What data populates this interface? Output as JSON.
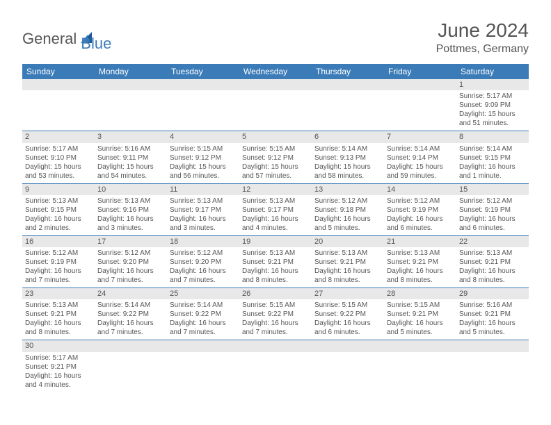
{
  "brand": {
    "text_main": "General",
    "text_accent": "Blue",
    "accent_color": "#3b7bb8"
  },
  "title": "June 2024",
  "location": "Pottmes, Germany",
  "colors": {
    "header_bg": "#3b7bb8",
    "header_text": "#ffffff",
    "daynum_bg": "#e8e8e8",
    "text": "#555555",
    "border": "#3b7bb8",
    "background": "#ffffff"
  },
  "typography": {
    "title_fontsize": 28,
    "location_fontsize": 16,
    "weekday_fontsize": 12,
    "daynum_fontsize": 11,
    "cell_fontsize": 10
  },
  "weekdays": [
    "Sunday",
    "Monday",
    "Tuesday",
    "Wednesday",
    "Thursday",
    "Friday",
    "Saturday"
  ],
  "weeks": [
    [
      null,
      null,
      null,
      null,
      null,
      null,
      {
        "n": "1",
        "sunrise": "Sunrise: 5:17 AM",
        "sunset": "Sunset: 9:09 PM",
        "daylight": "Daylight: 15 hours and 51 minutes."
      }
    ],
    [
      {
        "n": "2",
        "sunrise": "Sunrise: 5:17 AM",
        "sunset": "Sunset: 9:10 PM",
        "daylight": "Daylight: 15 hours and 53 minutes."
      },
      {
        "n": "3",
        "sunrise": "Sunrise: 5:16 AM",
        "sunset": "Sunset: 9:11 PM",
        "daylight": "Daylight: 15 hours and 54 minutes."
      },
      {
        "n": "4",
        "sunrise": "Sunrise: 5:15 AM",
        "sunset": "Sunset: 9:12 PM",
        "daylight": "Daylight: 15 hours and 56 minutes."
      },
      {
        "n": "5",
        "sunrise": "Sunrise: 5:15 AM",
        "sunset": "Sunset: 9:12 PM",
        "daylight": "Daylight: 15 hours and 57 minutes."
      },
      {
        "n": "6",
        "sunrise": "Sunrise: 5:14 AM",
        "sunset": "Sunset: 9:13 PM",
        "daylight": "Daylight: 15 hours and 58 minutes."
      },
      {
        "n": "7",
        "sunrise": "Sunrise: 5:14 AM",
        "sunset": "Sunset: 9:14 PM",
        "daylight": "Daylight: 15 hours and 59 minutes."
      },
      {
        "n": "8",
        "sunrise": "Sunrise: 5:14 AM",
        "sunset": "Sunset: 9:15 PM",
        "daylight": "Daylight: 16 hours and 1 minute."
      }
    ],
    [
      {
        "n": "9",
        "sunrise": "Sunrise: 5:13 AM",
        "sunset": "Sunset: 9:15 PM",
        "daylight": "Daylight: 16 hours and 2 minutes."
      },
      {
        "n": "10",
        "sunrise": "Sunrise: 5:13 AM",
        "sunset": "Sunset: 9:16 PM",
        "daylight": "Daylight: 16 hours and 3 minutes."
      },
      {
        "n": "11",
        "sunrise": "Sunrise: 5:13 AM",
        "sunset": "Sunset: 9:17 PM",
        "daylight": "Daylight: 16 hours and 3 minutes."
      },
      {
        "n": "12",
        "sunrise": "Sunrise: 5:13 AM",
        "sunset": "Sunset: 9:17 PM",
        "daylight": "Daylight: 16 hours and 4 minutes."
      },
      {
        "n": "13",
        "sunrise": "Sunrise: 5:12 AM",
        "sunset": "Sunset: 9:18 PM",
        "daylight": "Daylight: 16 hours and 5 minutes."
      },
      {
        "n": "14",
        "sunrise": "Sunrise: 5:12 AM",
        "sunset": "Sunset: 9:19 PM",
        "daylight": "Daylight: 16 hours and 6 minutes."
      },
      {
        "n": "15",
        "sunrise": "Sunrise: 5:12 AM",
        "sunset": "Sunset: 9:19 PM",
        "daylight": "Daylight: 16 hours and 6 minutes."
      }
    ],
    [
      {
        "n": "16",
        "sunrise": "Sunrise: 5:12 AM",
        "sunset": "Sunset: 9:19 PM",
        "daylight": "Daylight: 16 hours and 7 minutes."
      },
      {
        "n": "17",
        "sunrise": "Sunrise: 5:12 AM",
        "sunset": "Sunset: 9:20 PM",
        "daylight": "Daylight: 16 hours and 7 minutes."
      },
      {
        "n": "18",
        "sunrise": "Sunrise: 5:12 AM",
        "sunset": "Sunset: 9:20 PM",
        "daylight": "Daylight: 16 hours and 7 minutes."
      },
      {
        "n": "19",
        "sunrise": "Sunrise: 5:13 AM",
        "sunset": "Sunset: 9:21 PM",
        "daylight": "Daylight: 16 hours and 8 minutes."
      },
      {
        "n": "20",
        "sunrise": "Sunrise: 5:13 AM",
        "sunset": "Sunset: 9:21 PM",
        "daylight": "Daylight: 16 hours and 8 minutes."
      },
      {
        "n": "21",
        "sunrise": "Sunrise: 5:13 AM",
        "sunset": "Sunset: 9:21 PM",
        "daylight": "Daylight: 16 hours and 8 minutes."
      },
      {
        "n": "22",
        "sunrise": "Sunrise: 5:13 AM",
        "sunset": "Sunset: 9:21 PM",
        "daylight": "Daylight: 16 hours and 8 minutes."
      }
    ],
    [
      {
        "n": "23",
        "sunrise": "Sunrise: 5:13 AM",
        "sunset": "Sunset: 9:21 PM",
        "daylight": "Daylight: 16 hours and 8 minutes."
      },
      {
        "n": "24",
        "sunrise": "Sunrise: 5:14 AM",
        "sunset": "Sunset: 9:22 PM",
        "daylight": "Daylight: 16 hours and 7 minutes."
      },
      {
        "n": "25",
        "sunrise": "Sunrise: 5:14 AM",
        "sunset": "Sunset: 9:22 PM",
        "daylight": "Daylight: 16 hours and 7 minutes."
      },
      {
        "n": "26",
        "sunrise": "Sunrise: 5:15 AM",
        "sunset": "Sunset: 9:22 PM",
        "daylight": "Daylight: 16 hours and 7 minutes."
      },
      {
        "n": "27",
        "sunrise": "Sunrise: 5:15 AM",
        "sunset": "Sunset: 9:22 PM",
        "daylight": "Daylight: 16 hours and 6 minutes."
      },
      {
        "n": "28",
        "sunrise": "Sunrise: 5:15 AM",
        "sunset": "Sunset: 9:21 PM",
        "daylight": "Daylight: 16 hours and 5 minutes."
      },
      {
        "n": "29",
        "sunrise": "Sunrise: 5:16 AM",
        "sunset": "Sunset: 9:21 PM",
        "daylight": "Daylight: 16 hours and 5 minutes."
      }
    ],
    [
      {
        "n": "30",
        "sunrise": "Sunrise: 5:17 AM",
        "sunset": "Sunset: 9:21 PM",
        "daylight": "Daylight: 16 hours and 4 minutes."
      },
      null,
      null,
      null,
      null,
      null,
      null
    ]
  ]
}
